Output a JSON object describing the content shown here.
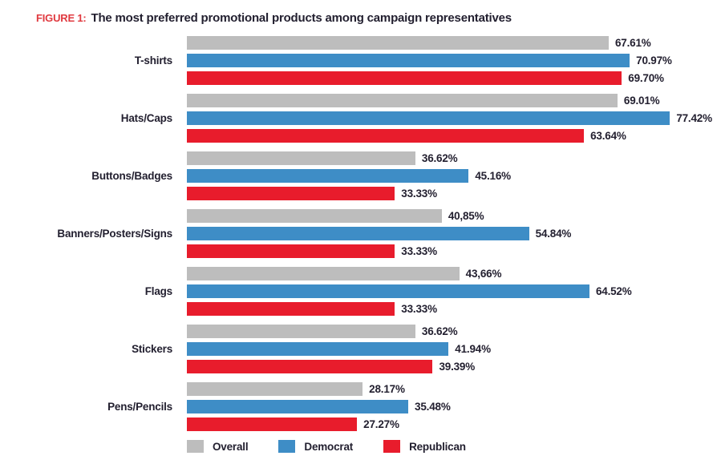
{
  "title": {
    "figure_label": "FIGURE 1:",
    "text": "The most preferred promotional products among campaign representatives"
  },
  "colors": {
    "overall_gray": "#bdbdbd",
    "democrat_blue": "#3e8dc6",
    "republican_red": "#e81c2c",
    "figure_label_red": "#e03a40",
    "text_dark": "#232030",
    "background": "#ffffff"
  },
  "legend": {
    "items": [
      {
        "label": "Overall",
        "color": "#bdbdbd"
      },
      {
        "label": "Democrat",
        "color": "#3e8dc6"
      },
      {
        "label": "Republican",
        "color": "#e81c2c"
      }
    ]
  },
  "chart_data": {
    "type": "bar",
    "orientation": "horizontal",
    "title": "FIGURE 1: The most preferred promotional products among campaign representatives",
    "xlabel": "",
    "ylabel": "",
    "xlim": [
      0,
      100
    ],
    "grid": false,
    "legend_position": "bottom",
    "categories": [
      "T-shirts",
      "Hats/Caps",
      "Buttons/Badges",
      "Banners/Posters/Signs",
      "Flags",
      "Stickers",
      "Pens/Pencils"
    ],
    "series": [
      {
        "name": "Overall",
        "color": "#bdbdbd",
        "values": [
          67.61,
          69.01,
          36.62,
          40.85,
          43.66,
          36.62,
          28.17
        ],
        "labels": [
          "67.61%",
          "69.01%",
          "36.62%",
          "40,85%",
          "43,66%",
          "36.62%",
          "28.17%"
        ]
      },
      {
        "name": "Democrat",
        "color": "#3e8dc6",
        "values": [
          70.97,
          77.42,
          45.16,
          54.84,
          64.52,
          41.94,
          35.48
        ],
        "labels": [
          "70.97%",
          "77.42%",
          "45.16%",
          "54.84%",
          "64.52%",
          "41.94%",
          "35.48%"
        ]
      },
      {
        "name": "Republican",
        "color": "#e81c2c",
        "values": [
          69.7,
          63.64,
          33.33,
          33.33,
          33.33,
          39.39,
          27.27
        ],
        "labels": [
          "69.70%",
          "63.64%",
          "33.33%",
          "33.33%",
          "33.33%",
          "39.39%",
          "27.27%"
        ]
      }
    ]
  }
}
